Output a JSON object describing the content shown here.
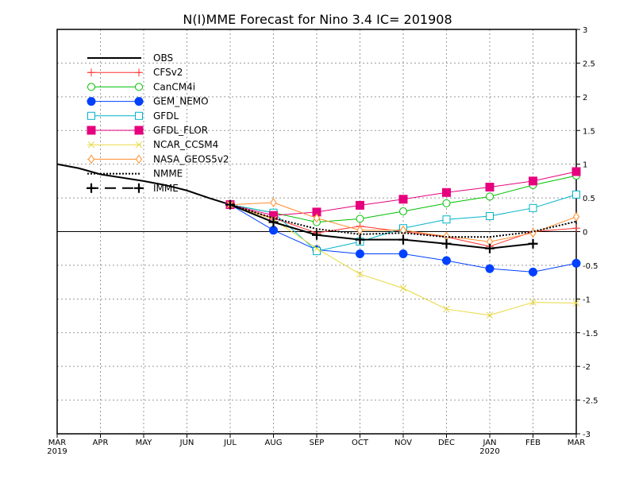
{
  "chart_data": {
    "type": "line",
    "title": "N(I)MME Forecast for Nino 3.4   IC= 201908",
    "x_labels": [
      "MAR",
      "APR",
      "MAY",
      "JUN",
      "JUL",
      "AUG",
      "SEP",
      "OCT",
      "NOV",
      "DEC",
      "JAN",
      "FEB",
      "MAR"
    ],
    "x_year_labels": [
      {
        "index": 0,
        "text": "2019"
      },
      {
        "index": 10,
        "text": "2020"
      }
    ],
    "ylim": [
      -3,
      3
    ],
    "yticks": [
      -3,
      -2.5,
      -2,
      -1.5,
      -1,
      -0.5,
      0,
      0.5,
      1,
      1.5,
      2,
      2.5,
      3
    ],
    "ytick_labels": [
      "-3",
      "-2.5",
      "-2",
      "-1.5",
      "-1",
      "-0.5",
      "0",
      "0.5",
      "1",
      "1.5",
      "2",
      "2.5",
      "3"
    ],
    "grid": true,
    "legend_position": "top-left",
    "series": [
      {
        "name": "OBS",
        "color": "#000000",
        "marker": "none",
        "x": [
          0,
          0.5,
          1,
          1.5,
          2,
          2.5,
          3,
          3.5,
          4
        ],
        "values": [
          1.0,
          0.94,
          0.85,
          0.8,
          0.75,
          0.69,
          0.61,
          0.5,
          0.4
        ]
      },
      {
        "name": "CFSv2",
        "color": "#ff3030",
        "marker": "plus",
        "x": [
          4,
          5,
          6,
          7,
          8,
          9,
          10,
          11,
          12
        ],
        "values": [
          0.4,
          0.2,
          -0.02,
          0.08,
          0.0,
          -0.08,
          -0.22,
          0.0,
          0.05
        ]
      },
      {
        "name": "CanCM4i",
        "color": "#00c000",
        "marker": "circle-open",
        "x": [
          4,
          5,
          6,
          7,
          8,
          9,
          10,
          11,
          12
        ],
        "values": [
          0.4,
          0.28,
          0.14,
          0.19,
          0.3,
          0.42,
          0.52,
          0.69,
          0.83
        ]
      },
      {
        "name": "GEM_NEMO",
        "color": "#0040ff",
        "marker": "circle-filled",
        "x": [
          4,
          5,
          6,
          7,
          8,
          9,
          10,
          11,
          12
        ],
        "values": [
          0.4,
          0.02,
          -0.27,
          -0.33,
          -0.33,
          -0.43,
          -0.55,
          -0.6,
          -0.47
        ]
      },
      {
        "name": "GFDL",
        "color": "#00b4c8",
        "marker": "square-open",
        "x": [
          4,
          5,
          6,
          7,
          8,
          9,
          10,
          11,
          12
        ],
        "values": [
          0.4,
          0.28,
          -0.29,
          -0.15,
          0.05,
          0.18,
          0.23,
          0.35,
          0.55
        ]
      },
      {
        "name": "GFDL_FLOR",
        "color": "#e6007e",
        "marker": "square-filled",
        "x": [
          4,
          5,
          6,
          7,
          8,
          9,
          10,
          11,
          12
        ],
        "values": [
          0.4,
          0.24,
          0.29,
          0.39,
          0.48,
          0.58,
          0.66,
          0.75,
          0.89
        ]
      },
      {
        "name": "NCAR_CCSM4",
        "color": "#e8d840",
        "marker": "cross",
        "x": [
          4,
          5,
          6,
          7,
          8,
          9,
          10,
          11,
          12
        ],
        "values": [
          0.4,
          0.18,
          -0.25,
          -0.63,
          -0.84,
          -1.15,
          -1.24,
          -1.05,
          -1.06
        ]
      },
      {
        "name": "NASA_GEOS5v2",
        "color": "#ff8c28",
        "marker": "diamond-open",
        "x": [
          4,
          5,
          6,
          7,
          8,
          9,
          10,
          11,
          12
        ],
        "values": [
          0.4,
          0.43,
          0.2,
          0.02,
          0.02,
          -0.07,
          -0.15,
          -0.02,
          0.22
        ]
      },
      {
        "name": "NMME",
        "color": "#000000",
        "marker": "none",
        "dash": "dotted",
        "x": [
          4,
          5,
          6,
          7,
          8,
          9,
          10,
          11,
          12
        ],
        "values": [
          0.4,
          0.2,
          0.04,
          -0.04,
          -0.02,
          -0.08,
          -0.08,
          0.0,
          0.15
        ]
      },
      {
        "name": "IMME",
        "color": "#000000",
        "marker": "plus-bold",
        "x": [
          4,
          5,
          6,
          7,
          8,
          9,
          10,
          11
        ],
        "values": [
          0.4,
          0.14,
          -0.05,
          -0.12,
          -0.12,
          -0.18,
          -0.25,
          -0.18
        ]
      }
    ]
  }
}
